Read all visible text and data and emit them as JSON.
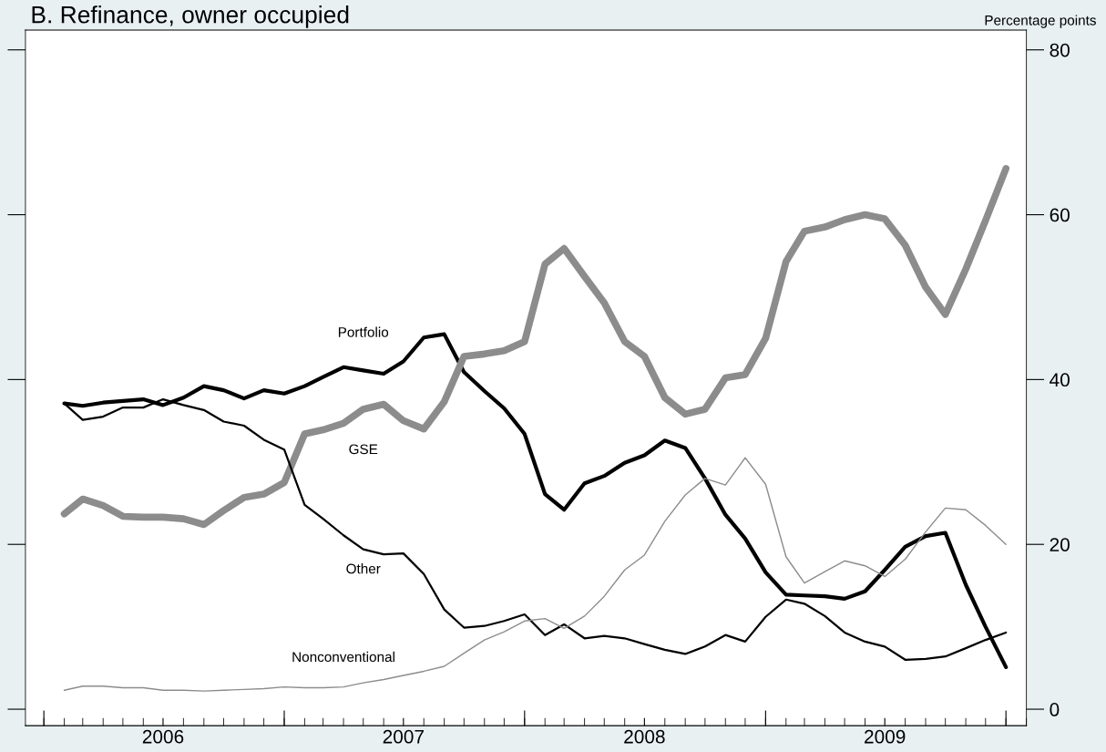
{
  "chart_data": {
    "type": "line",
    "title": "B. Refinance, owner occupied",
    "ylabel": "Percentage points",
    "x": [
      "2006-02",
      "2006-03",
      "2006-04",
      "2006-05",
      "2006-06",
      "2006-07",
      "2006-08",
      "2006-09",
      "2006-10",
      "2006-11",
      "2006-12",
      "2007-01",
      "2007-02",
      "2007-03",
      "2007-04",
      "2007-05",
      "2007-06",
      "2007-07",
      "2007-08",
      "2007-09",
      "2007-10",
      "2007-11",
      "2007-12",
      "2008-01",
      "2008-02",
      "2008-03",
      "2008-04",
      "2008-05",
      "2008-06",
      "2008-07",
      "2008-08",
      "2008-09",
      "2008-10",
      "2008-11",
      "2008-12",
      "2009-01",
      "2009-02",
      "2009-03",
      "2009-04",
      "2009-05",
      "2009-06",
      "2009-07",
      "2009-08",
      "2009-09",
      "2009-10",
      "2009-11",
      "2009-12",
      "2010-01"
    ],
    "series": [
      {
        "name": "Portfolio",
        "color": "#000000",
        "values": [
          37.1,
          36.8,
          37.2,
          37.4,
          37.6,
          36.9,
          37.8,
          39.2,
          38.7,
          37.7,
          38.7,
          38.3,
          39.2,
          40.3,
          41.5,
          41.1,
          40.7,
          42.2,
          45.1,
          45.5,
          40.9,
          38.6,
          36.5,
          33.4,
          26.1,
          24.2,
          27.4,
          28.3,
          29.9,
          30.8,
          32.6,
          31.7,
          28.0,
          23.6,
          20.7,
          16.6,
          13.9,
          13.8,
          13.7,
          13.4,
          14.3,
          16.9,
          19.7,
          21.0,
          21.4,
          15.1,
          10.0,
          5.1
        ]
      },
      {
        "name": "GSE",
        "color": "#8c8c8c",
        "values": [
          23.7,
          25.5,
          24.7,
          23.4,
          23.3,
          23.3,
          23.1,
          22.4,
          24.1,
          25.7,
          26.1,
          27.5,
          33.4,
          33.9,
          34.7,
          36.4,
          37.0,
          35.0,
          34.0,
          37.3,
          42.8,
          43.1,
          43.5,
          44.6,
          54.0,
          55.9,
          52.5,
          49.3,
          44.6,
          42.8,
          37.8,
          35.8,
          36.4,
          40.2,
          40.6,
          45.0,
          54.3,
          58.0,
          58.5,
          59.4,
          60.0,
          59.5,
          56.3,
          51.2,
          47.9,
          53.4,
          59.3,
          65.6
        ]
      },
      {
        "name": "Other",
        "color": "#000000",
        "values": [
          37.1,
          35.1,
          35.5,
          36.6,
          36.6,
          37.6,
          36.9,
          36.3,
          34.9,
          34.4,
          32.7,
          31.5,
          24.8,
          23.1,
          21.1,
          19.4,
          18.8,
          18.9,
          16.4,
          12.1,
          9.9,
          10.1,
          10.7,
          11.5,
          9.0,
          10.3,
          8.6,
          8.9,
          8.6,
          7.9,
          7.2,
          6.7,
          7.6,
          9.0,
          8.2,
          11.2,
          13.3,
          12.8,
          11.3,
          9.3,
          8.2,
          7.6,
          6.0,
          6.1,
          6.4,
          7.4,
          8.4,
          9.3
        ]
      },
      {
        "name": "Nonconventional",
        "color": "#8c8c8c",
        "values": [
          2.3,
          2.8,
          2.8,
          2.6,
          2.6,
          2.3,
          2.3,
          2.2,
          2.3,
          2.4,
          2.5,
          2.7,
          2.6,
          2.6,
          2.7,
          3.2,
          3.6,
          4.1,
          4.6,
          5.2,
          6.8,
          8.4,
          9.4,
          10.7,
          11.0,
          9.8,
          11.3,
          13.7,
          16.9,
          18.7,
          22.8,
          26.0,
          28.0,
          27.2,
          30.5,
          27.3,
          18.5,
          15.3,
          16.7,
          18.0,
          17.4,
          16.1,
          18.2,
          21.5,
          24.4,
          24.2,
          22.3,
          20.0
        ]
      }
    ],
    "xlim": [
      "2005-12-04",
      "2010-02-01"
    ],
    "xticks": [
      {
        "value": "2006-07-01",
        "label": "2006"
      },
      {
        "value": "2007-07-01",
        "label": "2007"
      },
      {
        "value": "2008-07-01",
        "label": "2008"
      },
      {
        "value": "2009-07-01",
        "label": "2009"
      }
    ],
    "ylim": [
      -2,
      82.4
    ],
    "yticks": [
      0,
      20,
      40,
      60,
      80
    ],
    "grid": false,
    "legend": false,
    "marker": "none",
    "line_style": "solid"
  }
}
